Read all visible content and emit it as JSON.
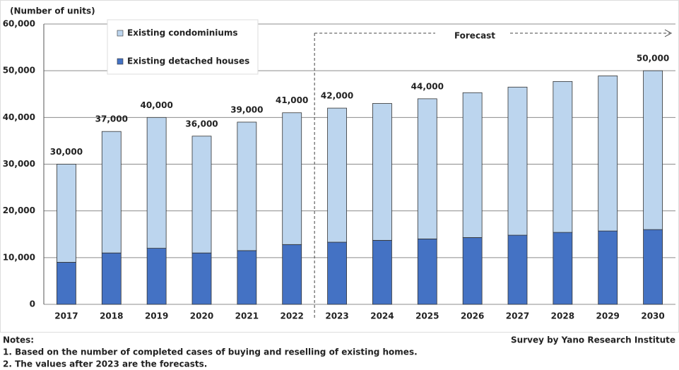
{
  "chart_data": {
    "type": "stacked-bar",
    "y_label": "(Number of units)",
    "categories": [
      "2017",
      "2018",
      "2019",
      "2020",
      "2021",
      "2022",
      "2023",
      "2024",
      "2025",
      "2026",
      "2027",
      "2028",
      "2029",
      "2030"
    ],
    "series": [
      {
        "name": "Existing detached houses",
        "color": "#4472c4",
        "values": [
          9000,
          11000,
          12000,
          11000,
          11500,
          12800,
          13300,
          13700,
          14000,
          14300,
          14800,
          15400,
          15700,
          16000
        ]
      },
      {
        "name": "Existing condominiums",
        "color": "#bcd5ee",
        "values": [
          21000,
          26000,
          28000,
          25000,
          27500,
          28200,
          28700,
          29300,
          30000,
          31000,
          31700,
          32300,
          33200,
          34000
        ]
      }
    ],
    "totals": {
      "values": [
        30000,
        37000,
        40000,
        36000,
        39000,
        41000,
        42000,
        null,
        44000,
        null,
        null,
        null,
        null,
        50000
      ],
      "value_labels": [
        "30,000",
        "37,000",
        "40,000",
        "36,000",
        "39,000",
        "41,000",
        "42,000",
        null,
        "44,000",
        null,
        null,
        null,
        null,
        "50,000"
      ]
    },
    "ylim": [
      0,
      60000
    ],
    "yticks": [
      0,
      {
        "value": 10000,
        "label": "10,000"
      },
      {
        "value": 20000,
        "label": "20,000"
      },
      {
        "value": 30000,
        "label": "30,000"
      },
      {
        "value": 40000,
        "label": "40,000"
      },
      {
        "value": 50000,
        "label": "50,000"
      },
      {
        "value": 60000,
        "label": "60,000"
      }
    ],
    "grid": true,
    "annotation": "Forecast",
    "notes": [
      "Notes:",
      "1. Based on the number of completed cases of buying and reselling of existing homes.",
      "2. The values after 2023 are the forecasts."
    ],
    "source": "Survey by Yano Research Institute"
  }
}
